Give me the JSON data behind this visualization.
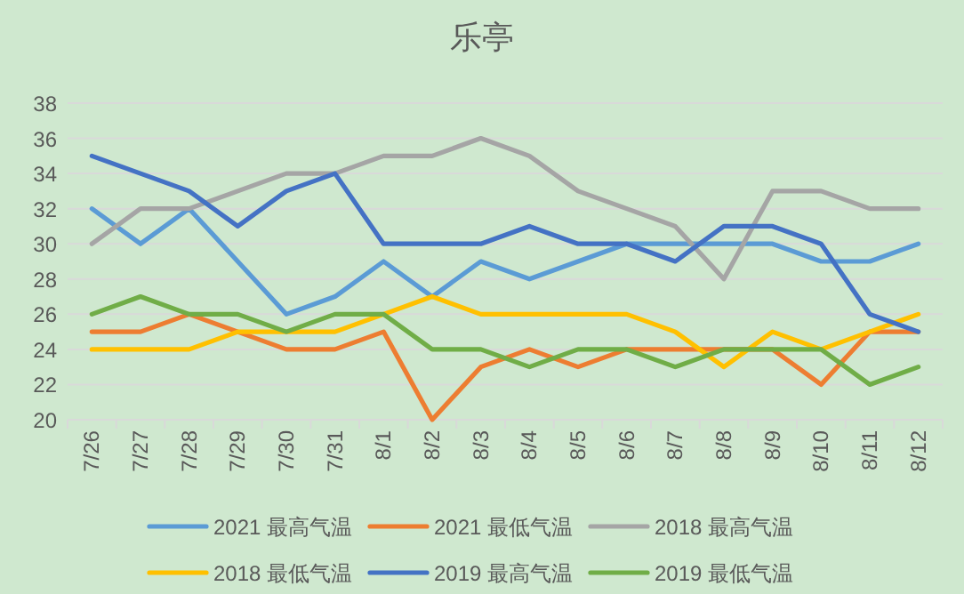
{
  "chart_data": {
    "type": "line",
    "title": "乐亭",
    "categories": [
      "7/26",
      "7/27",
      "7/28",
      "7/29",
      "7/30",
      "7/31",
      "8/1",
      "8/2",
      "8/3",
      "8/4",
      "8/5",
      "8/6",
      "8/7",
      "8/8",
      "8/9",
      "8/10",
      "8/11",
      "8/12"
    ],
    "series": [
      {
        "name": "2021 最高气温",
        "color": "#5b9bd5",
        "values": [
          32,
          30,
          32,
          29,
          26,
          27,
          29,
          27,
          29,
          28,
          29,
          30,
          30,
          30,
          30,
          29,
          29,
          30
        ]
      },
      {
        "name": "2021 最低气温",
        "color": "#ed7d31",
        "values": [
          25,
          25,
          26,
          25,
          24,
          24,
          25,
          20,
          23,
          24,
          23,
          24,
          24,
          24,
          24,
          22,
          25,
          25
        ]
      },
      {
        "name": "2018 最高气温",
        "color": "#a5a5a5",
        "values": [
          30,
          32,
          32,
          33,
          34,
          34,
          35,
          35,
          36,
          35,
          33,
          32,
          31,
          28,
          33,
          33,
          32,
          32
        ]
      },
      {
        "name": "2018 最低气温",
        "color": "#ffc000",
        "values": [
          24,
          24,
          24,
          25,
          25,
          25,
          26,
          27,
          26,
          26,
          26,
          26,
          25,
          23,
          25,
          24,
          25,
          26
        ]
      },
      {
        "name": "2019 最高气温",
        "color": "#4472c4",
        "values": [
          35,
          34,
          33,
          31,
          33,
          34,
          30,
          30,
          30,
          31,
          30,
          30,
          29,
          31,
          31,
          30,
          26,
          25
        ]
      },
      {
        "name": "2019 最低气温",
        "color": "#70ad47",
        "values": [
          26,
          27,
          26,
          26,
          25,
          26,
          26,
          24,
          24,
          23,
          24,
          24,
          23,
          24,
          24,
          24,
          22,
          23
        ]
      }
    ],
    "ylim": [
      20,
      38
    ],
    "yticks": [
      20,
      22,
      24,
      26,
      28,
      30,
      32,
      34,
      36,
      38
    ],
    "grid": "y",
    "legend": "bottom",
    "marker": "none",
    "line_style": "solid"
  }
}
